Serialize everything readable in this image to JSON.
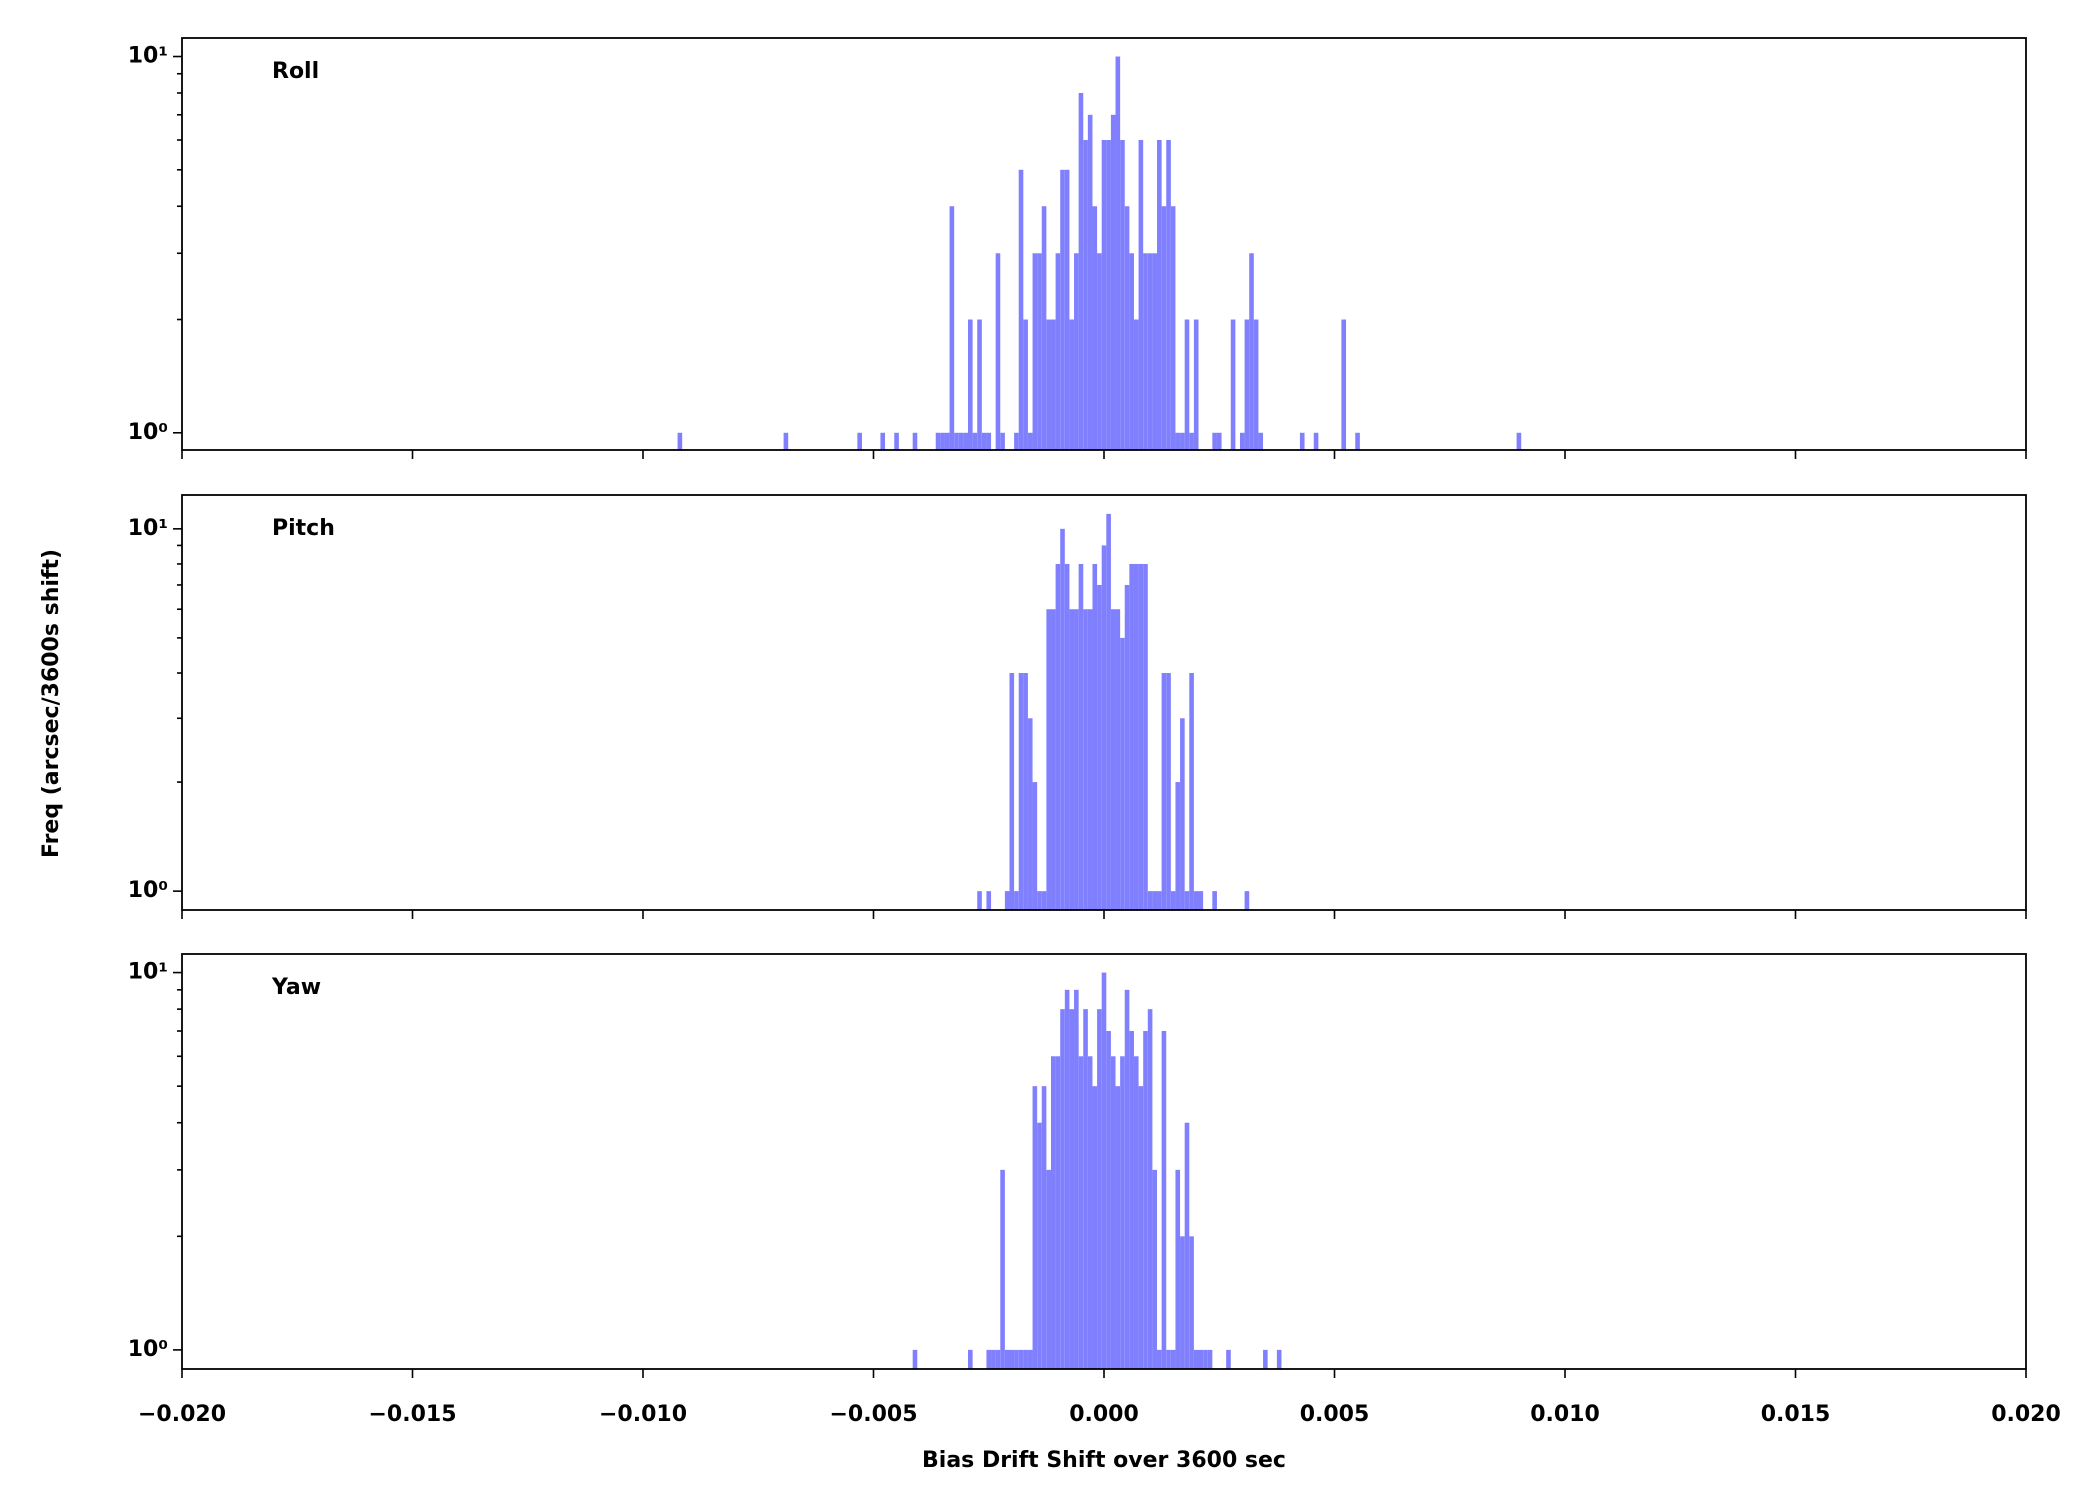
{
  "chart_data": [
    {
      "type": "bar",
      "title": "Roll",
      "yscale": "log",
      "color": "#8080ff",
      "xlim": [
        -0.02,
        0.02
      ],
      "xticks": [
        -0.02,
        -0.015,
        -0.01,
        -0.005,
        0,
        0.005,
        0.01,
        0.015,
        0.02
      ],
      "ylim": [
        0.9,
        11.2
      ],
      "yticks": [
        {
          "value": 1,
          "label": "10⁰"
        },
        {
          "value": 10,
          "label": "10¹"
        }
      ],
      "yminorticks": [
        2,
        3,
        4,
        5,
        6,
        7,
        8,
        9
      ],
      "x": [
        -0.0092,
        -0.0069,
        -0.0053,
        -0.0048,
        -0.0045,
        -0.0041,
        -0.0036,
        -0.0035,
        -0.0034,
        -0.0033,
        -0.0032,
        -0.0031,
        -0.003,
        -0.0029,
        -0.0028,
        -0.0027,
        -0.0026,
        -0.0025,
        -0.0023,
        -0.0022,
        -0.0019,
        -0.0018,
        -0.0017,
        -0.0016,
        -0.0015,
        -0.0014,
        -0.0013,
        -0.0012,
        -0.0011,
        -0.001,
        -0.0009,
        -0.0008,
        -0.0007,
        -0.0006,
        -0.0005,
        -0.0004,
        -0.0003,
        -0.0002,
        -0.0001,
        0,
        0.0001,
        0.0002,
        0.0003,
        0.0004,
        0.0005,
        0.0006,
        0.0007,
        0.0008,
        0.0009,
        0.001,
        0.0011,
        0.0012,
        0.0013,
        0.0014,
        0.0015,
        0.0016,
        0.0017,
        0.0018,
        0.0019,
        0.002,
        0.0024,
        0.0025,
        0.0028,
        0.003,
        0.0031,
        0.0032,
        0.0033,
        0.0034,
        0.0043,
        0.0046,
        0.0052,
        0.0055,
        0.009
      ],
      "values": [
        1,
        1,
        1,
        1,
        1,
        1,
        1,
        1,
        1,
        4,
        1,
        1,
        1,
        2,
        1,
        2,
        1,
        1,
        3,
        1,
        1,
        5,
        2,
        1,
        3,
        3,
        4,
        2,
        2,
        3,
        5,
        5,
        2,
        3,
        8,
        6,
        7,
        4,
        3,
        6,
        6,
        7,
        10,
        6,
        4,
        3,
        2,
        6,
        3,
        3,
        3,
        6,
        4,
        6,
        4,
        1,
        1,
        2,
        1,
        2,
        1,
        1,
        2,
        1,
        2,
        3,
        2,
        1,
        1,
        1,
        2,
        1,
        1
      ]
    },
    {
      "type": "bar",
      "title": "Pitch",
      "yscale": "log",
      "color": "#8080ff",
      "ylabel": "Freq (arcsec/3600s shift)",
      "xlim": [
        -0.02,
        0.02
      ],
      "xticks": [
        -0.02,
        -0.015,
        -0.01,
        -0.005,
        0,
        0.005,
        0.01,
        0.015,
        0.02
      ],
      "ylim": [
        0.887,
        12.4
      ],
      "yticks": [
        {
          "value": 1,
          "label": "10⁰"
        },
        {
          "value": 10,
          "label": "10¹"
        }
      ],
      "yminorticks": [
        2,
        3,
        4,
        5,
        6,
        7,
        8,
        9
      ],
      "x": [
        -0.0027,
        -0.0025,
        -0.0021,
        -0.002,
        -0.0019,
        -0.0018,
        -0.0017,
        -0.0016,
        -0.0015,
        -0.0014,
        -0.0013,
        -0.0012,
        -0.0011,
        -0.001,
        -0.0009,
        -0.0008,
        -0.0007,
        -0.0006,
        -0.0005,
        -0.0004,
        -0.0003,
        -0.0002,
        -0.0001,
        0,
        0.0001,
        0.0002,
        0.0003,
        0.0004,
        0.0005,
        0.0006,
        0.0007,
        0.0008,
        0.0009,
        0.001,
        0.0011,
        0.0012,
        0.0013,
        0.0014,
        0.0015,
        0.0016,
        0.0017,
        0.0018,
        0.0019,
        0.002,
        0.0021,
        0.0024,
        0.0031
      ],
      "values": [
        1,
        1,
        1,
        4,
        1,
        4,
        4,
        3,
        2,
        1,
        1,
        6,
        6,
        8,
        10,
        8,
        6,
        6,
        8,
        6,
        6,
        8,
        7,
        9,
        11,
        6,
        6,
        5,
        7,
        8,
        8,
        8,
        8,
        1,
        1,
        1,
        4,
        4,
        1,
        2,
        3,
        1,
        4,
        1,
        1,
        1,
        1
      ]
    },
    {
      "type": "bar",
      "title": "Yaw",
      "yscale": "log",
      "color": "#8080ff",
      "xlabel": "Bias Drift Shift over 3600 sec",
      "xlim": [
        -0.02,
        0.02
      ],
      "xticks": [
        {
          "value": -0.02,
          "label": "−0.020"
        },
        {
          "value": -0.015,
          "label": "−0.015"
        },
        {
          "value": -0.01,
          "label": "−0.010"
        },
        {
          "value": -0.005,
          "label": "−0.005"
        },
        {
          "value": 0,
          "label": "0.000"
        },
        {
          "value": 0.005,
          "label": "0.005"
        },
        {
          "value": 0.01,
          "label": "0.010"
        },
        {
          "value": 0.015,
          "label": "0.015"
        },
        {
          "value": 0.02,
          "label": "0.020"
        }
      ],
      "ylim": [
        0.89,
        11.2
      ],
      "yticks": [
        {
          "value": 1,
          "label": "10⁰"
        },
        {
          "value": 10,
          "label": "10¹"
        }
      ],
      "yminorticks": [
        2,
        3,
        4,
        5,
        6,
        7,
        8,
        9
      ],
      "x": [
        -0.0041,
        -0.0029,
        -0.0025,
        -0.0024,
        -0.0023,
        -0.0022,
        -0.0021,
        -0.002,
        -0.0019,
        -0.0018,
        -0.0017,
        -0.0016,
        -0.0015,
        -0.0014,
        -0.0013,
        -0.0012,
        -0.0011,
        -0.001,
        -0.0009,
        -0.0008,
        -0.0007,
        -0.0006,
        -0.0005,
        -0.0004,
        -0.0003,
        -0.0002,
        -0.0001,
        0,
        0.0001,
        0.0002,
        0.0003,
        0.0004,
        0.0005,
        0.0006,
        0.0007,
        0.0008,
        0.0009,
        0.001,
        0.0011,
        0.0012,
        0.0013,
        0.0014,
        0.0015,
        0.0016,
        0.0017,
        0.0018,
        0.0019,
        0.002,
        0.0021,
        0.0022,
        0.0023,
        0.0027,
        0.0035,
        0.0038
      ],
      "values": [
        1,
        1,
        1,
        1,
        1,
        3,
        1,
        1,
        1,
        1,
        1,
        1,
        5,
        4,
        5,
        3,
        6,
        6,
        8,
        9,
        8,
        9,
        6,
        8,
        6,
        5,
        8,
        10,
        7,
        6,
        5,
        6,
        9,
        7,
        6,
        5,
        7,
        8,
        3,
        1,
        7,
        1,
        1,
        3,
        2,
        4,
        2,
        1,
        1,
        1,
        1,
        1,
        1,
        1
      ]
    }
  ]
}
